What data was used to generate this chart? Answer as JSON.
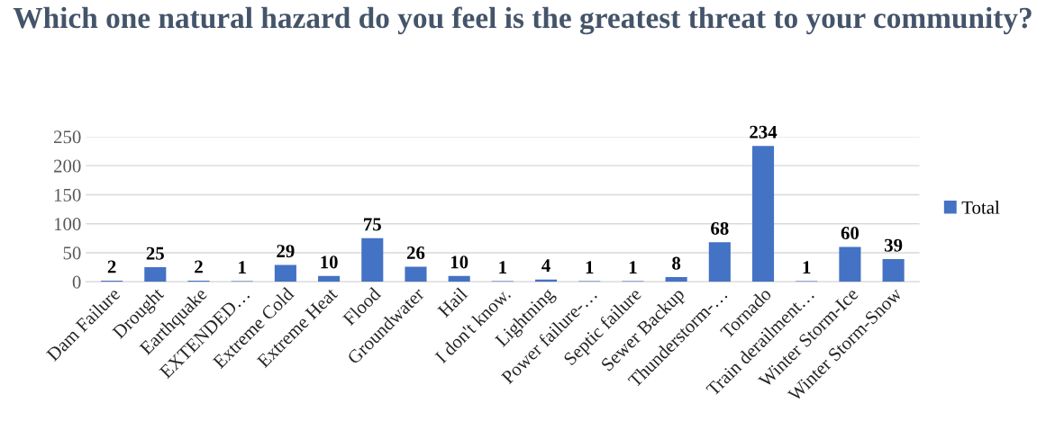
{
  "chart_data": {
    "type": "bar",
    "title": "Which one natural hazard do you feel is the greatest threat to your community?",
    "categories": [
      "Dam Failure",
      "Drought",
      "Earthquake",
      "EXTENDED…",
      "Extreme Cold",
      "Extreme Heat",
      "Flood",
      "Groundwater",
      "Hail",
      "I don't know.",
      "Lightning",
      "Power failure-…",
      "Septic failure",
      "Sewer Backup",
      "Thunderstorm-…",
      "Tornado",
      "Train derailment…",
      "Winter Storm-Ice",
      "Winter Storm-Snow"
    ],
    "series": [
      {
        "name": "Total",
        "color": "#4472c4",
        "values": [
          2,
          25,
          2,
          1,
          29,
          10,
          75,
          26,
          10,
          1,
          4,
          1,
          1,
          8,
          68,
          234,
          1,
          60,
          39
        ]
      }
    ],
    "ylim": [
      0,
      250
    ],
    "yticks": [
      0,
      50,
      100,
      150,
      200,
      250
    ],
    "grid": "y",
    "legend": "right",
    "data_labels": true
  }
}
